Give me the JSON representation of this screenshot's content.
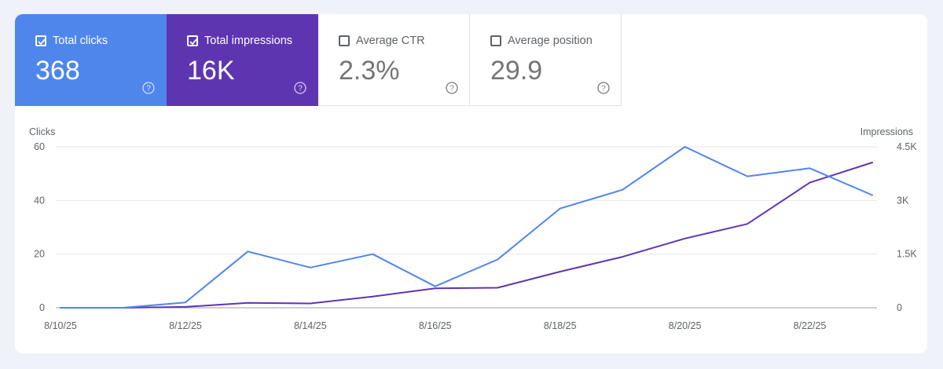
{
  "metrics": {
    "clicks": {
      "label": "Total clicks",
      "value": "368",
      "selected": true
    },
    "impressions": {
      "label": "Total impressions",
      "value": "16K",
      "selected": true
    },
    "ctr": {
      "label": "Average CTR",
      "value": "2.3%",
      "selected": false
    },
    "position": {
      "label": "Average position",
      "value": "29.9",
      "selected": false
    }
  },
  "colors": {
    "clicks": "#4f86ec",
    "impressions": "#5e35b1"
  },
  "chart_data": {
    "type": "line",
    "x": [
      "8/10/25",
      "8/11/25",
      "8/12/25",
      "8/13/25",
      "8/14/25",
      "8/15/25",
      "8/16/25",
      "8/17/25",
      "8/18/25",
      "8/19/25",
      "8/20/25",
      "8/21/25",
      "8/22/25",
      "8/23/25"
    ],
    "x_tick_labels": [
      "8/10/25",
      "8/12/25",
      "8/14/25",
      "8/16/25",
      "8/18/25",
      "8/20/25",
      "8/22/25"
    ],
    "y_left": {
      "label": "Clicks",
      "ticks": [
        "0",
        "20",
        "40",
        "60"
      ],
      "range": [
        0,
        60
      ]
    },
    "y_right": {
      "label": "Impressions",
      "ticks": [
        "0",
        "1.5K",
        "3K",
        "4.5K"
      ],
      "range": [
        0,
        4500
      ]
    },
    "series": [
      {
        "name": "Clicks",
        "axis": "left",
        "values": [
          0,
          0,
          2,
          21,
          15,
          20,
          8,
          18,
          37,
          44,
          60,
          49,
          52,
          42
        ]
      },
      {
        "name": "Impressions",
        "axis": "right",
        "values": [
          0,
          0,
          25,
          135,
          120,
          315,
          545,
          560,
          1010,
          1425,
          1935,
          2345,
          3500,
          4060
        ]
      }
    ]
  }
}
